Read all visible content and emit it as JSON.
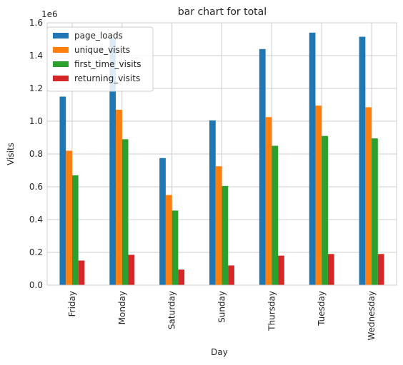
{
  "chart_data": {
    "type": "bar",
    "title": "bar chart for total",
    "xlabel": "Day",
    "ylabel": "Visits",
    "y_offset_label": "1e6",
    "categories": [
      "Friday",
      "Monday",
      "Saturday",
      "Sunday",
      "Thursday",
      "Tuesday",
      "Wednesday"
    ],
    "series": [
      {
        "name": "page_loads",
        "color": "#1f77b4",
        "values": [
          1150000,
          1505000,
          775000,
          1005000,
          1440000,
          1540000,
          1515000
        ]
      },
      {
        "name": "unique_visits",
        "color": "#ff7f0e",
        "values": [
          820000,
          1070000,
          550000,
          725000,
          1025000,
          1095000,
          1085000
        ]
      },
      {
        "name": "first_time_visits",
        "color": "#2ca02c",
        "values": [
          670000,
          890000,
          455000,
          605000,
          850000,
          910000,
          895000
        ]
      },
      {
        "name": "returning_visits",
        "color": "#d62728",
        "values": [
          150000,
          185000,
          95000,
          120000,
          180000,
          190000,
          190000
        ]
      }
    ],
    "ylim": [
      0,
      1600000
    ],
    "yticks": [
      {
        "value": 0,
        "label": "0.0"
      },
      {
        "value": 200000,
        "label": "0.2"
      },
      {
        "value": 400000,
        "label": "0.4"
      },
      {
        "value": 600000,
        "label": "0.6"
      },
      {
        "value": 800000,
        "label": "0.8"
      },
      {
        "value": 1000000,
        "label": "1.0"
      },
      {
        "value": 1200000,
        "label": "1.2"
      },
      {
        "value": 1400000,
        "label": "1.4"
      },
      {
        "value": 1600000,
        "label": "1.6"
      }
    ],
    "grid": true,
    "legend_position": "top-left",
    "colors": {
      "grid": "#cccccc",
      "spine": "#cccccc",
      "text": "#262626",
      "legend_border": "#cccccc"
    }
  }
}
